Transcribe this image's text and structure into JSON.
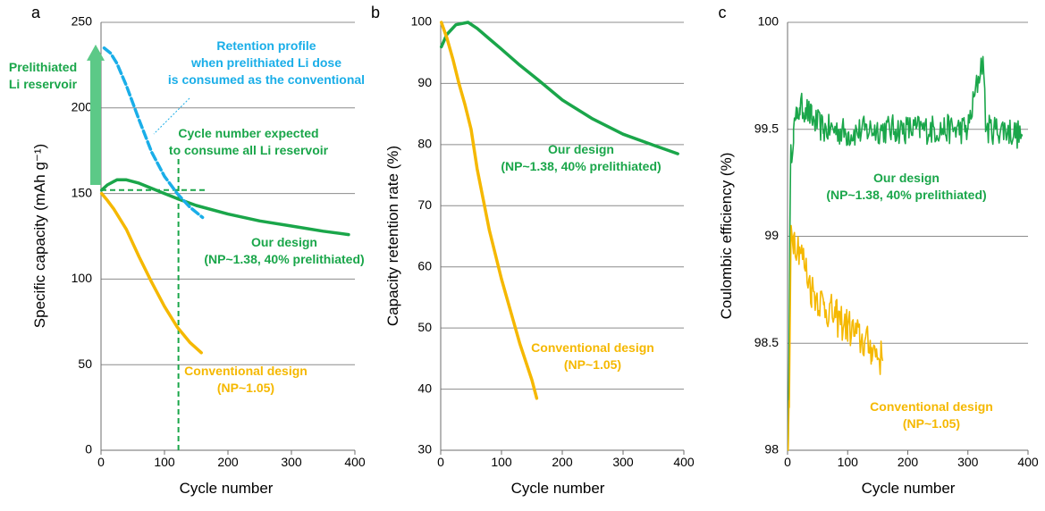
{
  "colors": {
    "green": "#1aa64a",
    "orange": "#f5b800",
    "blue": "#1aaee8",
    "arrow_green": "#5cc987"
  },
  "chart_data": [
    {
      "panel_label": "a",
      "type": "line",
      "xlabel": "Cycle number",
      "ylabel": "Specific capacity (mAh g⁻¹)",
      "xlim": [
        0,
        400
      ],
      "ylim": [
        0,
        250
      ],
      "xticks": [
        "0",
        "100",
        "200",
        "300",
        "400"
      ],
      "yticks": [
        "0",
        "50",
        "100",
        "150",
        "200",
        "250"
      ],
      "grid": "horizontal",
      "series": [
        {
          "name": "Our design (NP~1.38, 40% prelithiated)",
          "color": "green",
          "x": [
            1,
            10,
            25,
            40,
            60,
            80,
            100,
            120,
            150,
            200,
            250,
            300,
            350,
            390
          ],
          "y": [
            152,
            155,
            158,
            158,
            156,
            153,
            150,
            147,
            143,
            138,
            134,
            131,
            128,
            126
          ]
        },
        {
          "name": "Conventional design (NP~1.05)",
          "color": "orange",
          "x": [
            1,
            10,
            20,
            40,
            60,
            80,
            100,
            120,
            140,
            158
          ],
          "y": [
            150,
            146,
            141,
            129,
            113,
            98,
            84,
            72,
            63,
            57
          ]
        },
        {
          "name": "Retention profile when prelithiated Li dose is consumed as the conventional",
          "color": "blue",
          "dashed": true,
          "x": [
            5,
            15,
            25,
            40,
            60,
            80,
            100,
            120,
            140,
            160
          ],
          "y": [
            235,
            232,
            226,
            213,
            193,
            174,
            160,
            150,
            142,
            136
          ]
        }
      ],
      "reference_lines": [
        {
          "orientation": "vertical",
          "x": 122,
          "y_from": 0,
          "y_to": 172,
          "color": "green"
        },
        {
          "orientation": "horizontal",
          "y": 152,
          "x_from": 0,
          "x_to": 165,
          "color": "green"
        }
      ],
      "arrow": {
        "from_y": 155,
        "to_y": 237,
        "color": "arrow_green"
      },
      "annotations": {
        "arrow_label": [
          "Prelithiated",
          "Li reservoir"
        ],
        "blue_label": [
          "Retention profile",
          "when prelithiated Li dose",
          "is consumed as the conventional"
        ],
        "cycle_label": [
          "Cycle number expected",
          "to consume all Li reservoir"
        ],
        "green_label": [
          "Our design",
          "(NP~1.38, 40% prelithiated)"
        ],
        "orange_label": [
          "Conventional design",
          "(NP~1.05)"
        ]
      }
    },
    {
      "panel_label": "b",
      "type": "line",
      "xlabel": "Cycle number",
      "ylabel": "Capacity retention rate (%)",
      "xlim": [
        0,
        400
      ],
      "ylim": [
        30,
        100
      ],
      "xticks": [
        "0",
        "100",
        "200",
        "300",
        "400"
      ],
      "yticks": [
        "30",
        "40",
        "50",
        "60",
        "70",
        "80",
        "90",
        "100"
      ],
      "grid": "horizontal",
      "series": [
        {
          "name": "Our design (NP~1.38, 40% prelithiated)",
          "color": "green",
          "x": [
            1,
            10,
            25,
            45,
            60,
            80,
            100,
            130,
            160,
            200,
            250,
            300,
            350,
            390
          ],
          "y": [
            96,
            98,
            99.6,
            100,
            99,
            97.3,
            95.6,
            93,
            90.6,
            87.3,
            84.2,
            81.7,
            79.9,
            78.5
          ]
        },
        {
          "name": "Conventional design (NP~1.05)",
          "color": "orange",
          "x": [
            1,
            10,
            20,
            30,
            40,
            50,
            60,
            70,
            80,
            90,
            100,
            110,
            120,
            130,
            140,
            150,
            158
          ],
          "y": [
            100,
            97.5,
            94,
            90,
            86.5,
            82.5,
            76,
            71,
            66,
            62,
            58,
            54.5,
            51,
            47.5,
            44.5,
            41.5,
            38.5
          ]
        }
      ],
      "annotations": {
        "green_label": [
          "Our design",
          "(NP~1.38, 40% prelithiated)"
        ],
        "orange_label": [
          "Conventional design",
          "(NP~1.05)"
        ]
      }
    },
    {
      "panel_label": "c",
      "type": "line",
      "xlabel": "Cycle number",
      "ylabel": "Coulombic efficiency (%)",
      "xlim": [
        0,
        400
      ],
      "ylim": [
        98,
        100
      ],
      "xticks": [
        "0",
        "100",
        "200",
        "300",
        "400"
      ],
      "yticks": [
        "98",
        "98.5",
        "99",
        "99.5",
        "100"
      ],
      "grid": "horizontal",
      "series": [
        {
          "name": "Our design (NP~1.38, 40% prelithiated)",
          "color": "green",
          "x": [
            1,
            5,
            10,
            15,
            20,
            30,
            40,
            60,
            80,
            100,
            140,
            180,
            220,
            260,
            300,
            325,
            330,
            360,
            390
          ],
          "y": [
            98,
            99.35,
            99.5,
            99.55,
            99.6,
            99.6,
            99.55,
            99.5,
            99.5,
            99.48,
            99.5,
            99.5,
            99.5,
            99.5,
            99.5,
            99.84,
            99.5,
            99.5,
            99.47
          ],
          "noise": 0.07
        },
        {
          "name": "Conventional design (NP~1.05)",
          "color": "orange",
          "x": [
            1,
            3,
            6,
            10,
            20,
            30,
            40,
            60,
            80,
            100,
            120,
            140,
            158
          ],
          "y": [
            98.0,
            98.2,
            99.05,
            99.0,
            98.95,
            98.85,
            98.75,
            98.68,
            98.62,
            98.58,
            98.52,
            98.48,
            98.42
          ],
          "noise": 0.09
        }
      ],
      "annotations": {
        "green_label": [
          "Our design",
          "(NP~1.38, 40% prelithiated)"
        ],
        "orange_label": [
          "Conventional design",
          "(NP~1.05)"
        ]
      }
    }
  ]
}
